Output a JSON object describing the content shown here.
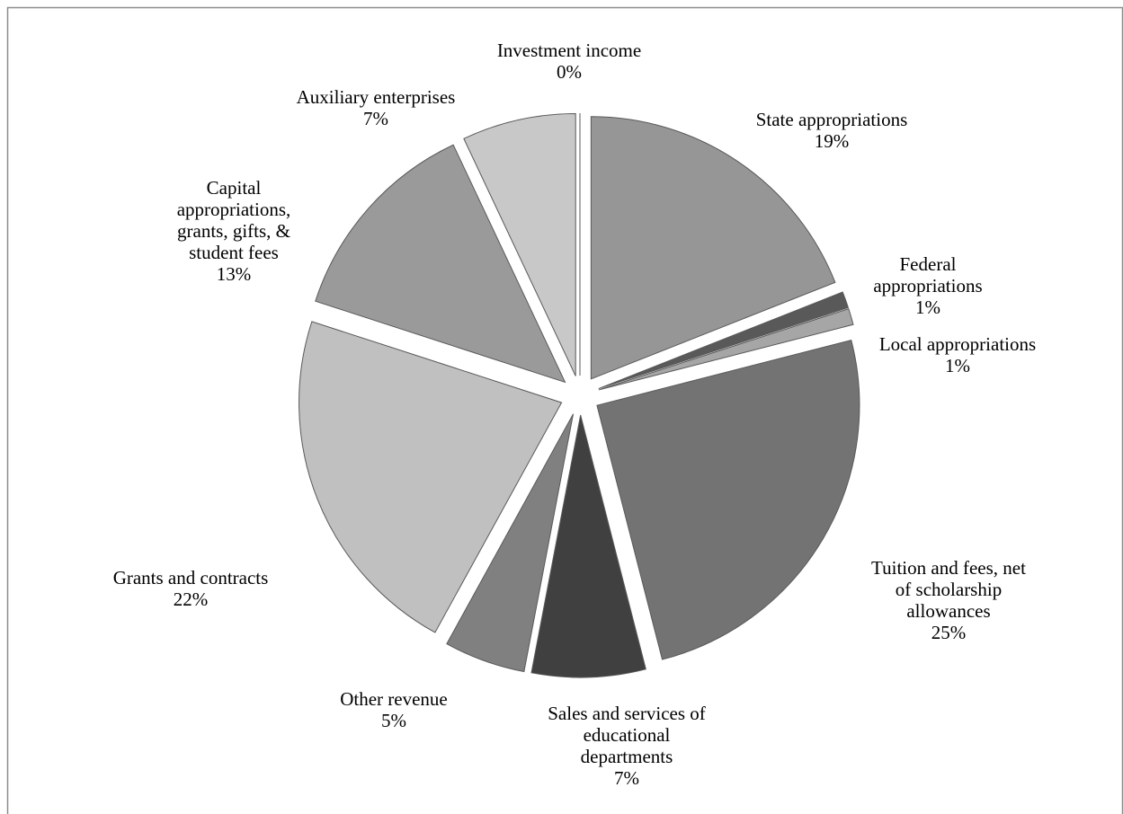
{
  "chart_data": {
    "type": "pie",
    "categories": [
      "State appropriations",
      "Federal\nappropriations",
      "Local appropriations",
      "Tuition and fees, net\nof scholarship\nallowances",
      "Sales and services of\neducational\ndepartments",
      "Other revenue",
      "Grants and contracts",
      "Capital\nappropriations,\ngrants, gifts, &\nstudent fees",
      "Auxiliary enterprises",
      "Investment  income"
    ],
    "values": [
      19,
      1,
      1,
      25,
      7,
      5,
      22,
      13,
      7,
      0
    ],
    "value_labels": [
      "19%",
      "1%",
      "1%",
      "25%",
      "7%",
      "5%",
      "22%",
      "13%",
      "7%",
      "0%"
    ],
    "colors": [
      "#969696",
      "#595959",
      "#a6a6a6",
      "#737373",
      "#404040",
      "#808080",
      "#c0c0c0",
      "#9a9a9a",
      "#c8c8c8",
      "#a0a0a0"
    ]
  }
}
